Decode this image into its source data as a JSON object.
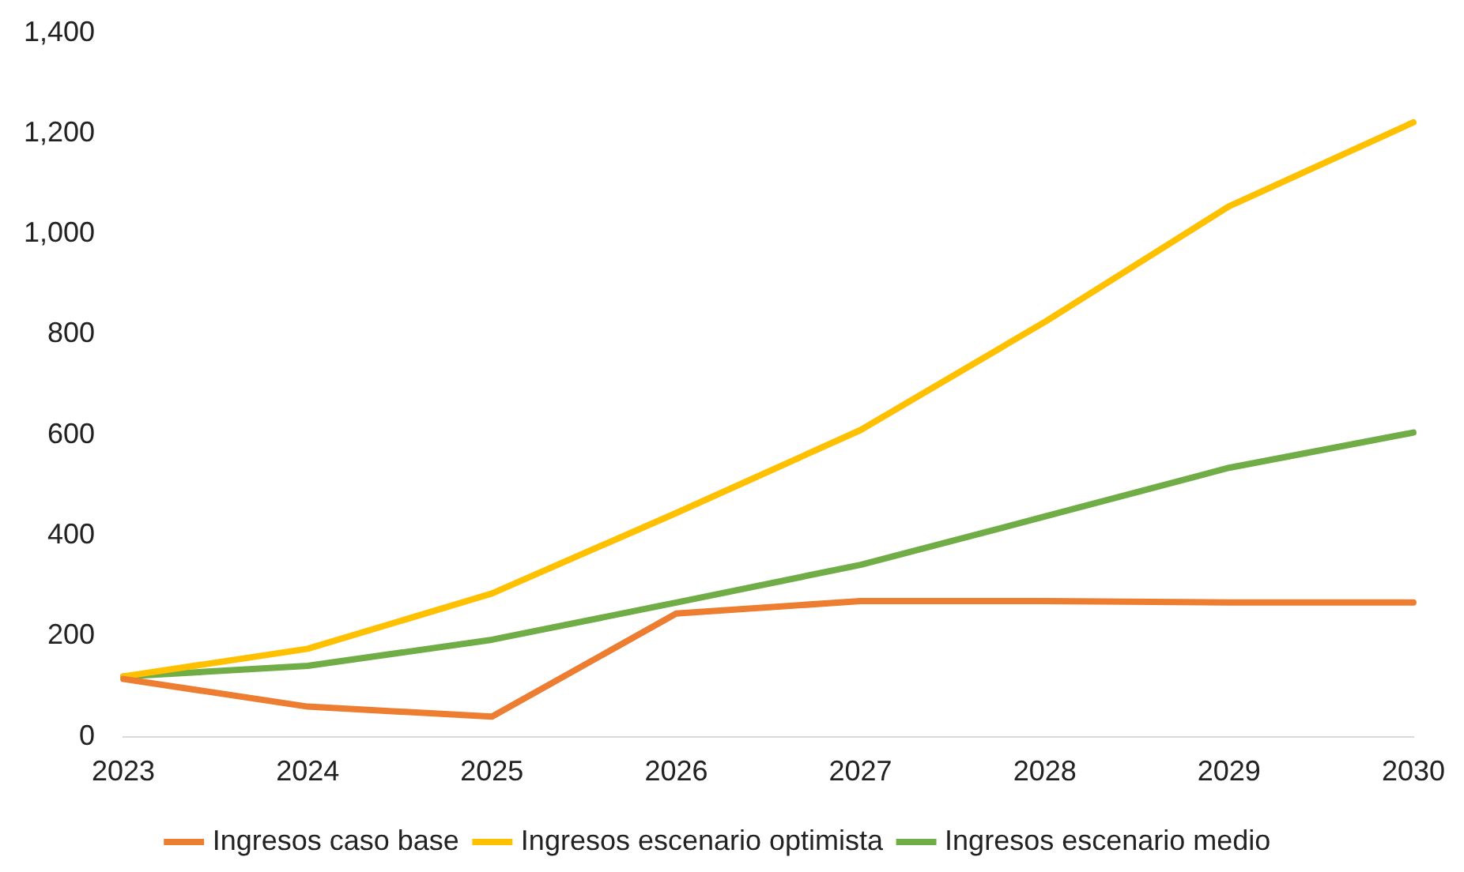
{
  "chart_data": {
    "type": "line",
    "categories": [
      "2023",
      "2024",
      "2025",
      "2026",
      "2027",
      "2028",
      "2029",
      "2030"
    ],
    "series": [
      {
        "name": "Ingresos caso base",
        "color": "#ed7d31",
        "values": [
          115,
          60,
          40,
          245,
          270,
          270,
          267,
          267
        ]
      },
      {
        "name": "Ingresos escenario optimista",
        "color": "#ffc000",
        "values": [
          120,
          175,
          285,
          445,
          610,
          825,
          1055,
          1222
        ]
      },
      {
        "name": "Ingresos escenario medio",
        "color": "#70ad47",
        "values": [
          120,
          141,
          193,
          267,
          342,
          438,
          535,
          605
        ]
      }
    ],
    "ylim": [
      0,
      1400
    ],
    "yticks": [
      {
        "value": 0,
        "label": "0"
      },
      {
        "value": 200,
        "label": "200"
      },
      {
        "value": 400,
        "label": "400"
      },
      {
        "value": 600,
        "label": "600"
      },
      {
        "value": 800,
        "label": "800"
      },
      {
        "value": 1000,
        "label": "1,000"
      },
      {
        "value": 1200,
        "label": "1,200"
      },
      {
        "value": 1400,
        "label": "1,400"
      }
    ],
    "grid": false,
    "legend": "bottom",
    "marker": "none",
    "line_style": "solid"
  }
}
